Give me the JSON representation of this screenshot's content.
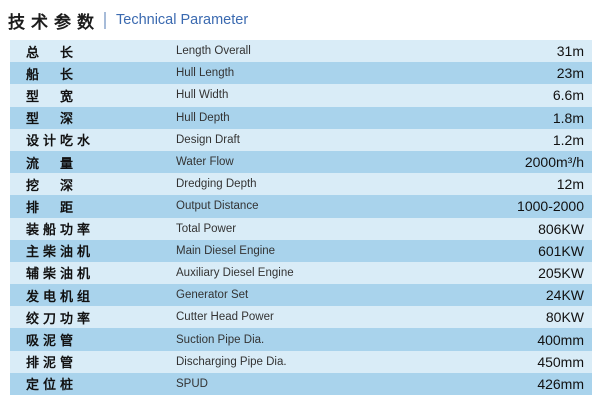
{
  "header": {
    "title_cn": "技术参数",
    "title_en": "Technical Parameter"
  },
  "colors": {
    "accent": "#3b6ab0",
    "separator": "#a7bcd9",
    "row_light": "#d9ecf7",
    "row_dark": "#a9d3ec"
  },
  "table": {
    "rows": [
      {
        "label_cn": "总　长",
        "label_en": "Length Overall",
        "value": "31m"
      },
      {
        "label_cn": "船　长",
        "label_en": "Hull Length",
        "value": "23m"
      },
      {
        "label_cn": "型　宽",
        "label_en": "Hull Width",
        "value": "6.6m"
      },
      {
        "label_cn": "型　深",
        "label_en": "Hull Depth",
        "value": "1.8m"
      },
      {
        "label_cn": "设计吃水",
        "label_en": "Design Draft",
        "value": "1.2m"
      },
      {
        "label_cn": "流　量",
        "label_en": "Water Flow",
        "value": "2000m³/h"
      },
      {
        "label_cn": "挖　深",
        "label_en": "Dredging Depth",
        "value": "12m"
      },
      {
        "label_cn": "排　距",
        "label_en": "Output Distance",
        "value": "1000-2000"
      },
      {
        "label_cn": "装船功率",
        "label_en": "Total Power",
        "value": "806KW"
      },
      {
        "label_cn": "主柴油机",
        "label_en": "Main Diesel Engine",
        "value": "601KW"
      },
      {
        "label_cn": "辅柴油机",
        "label_en": "Auxiliary Diesel Engine",
        "value": "205KW"
      },
      {
        "label_cn": "发电机组",
        "label_en": "Generator Set",
        "value": "24KW"
      },
      {
        "label_cn": "绞刀功率",
        "label_en": "Cutter Head Power",
        "value": "80KW"
      },
      {
        "label_cn": "吸泥管",
        "label_en": "Suction Pipe Dia.",
        "value": "400mm"
      },
      {
        "label_cn": "排泥管",
        "label_en": "Discharging Pipe Dia.",
        "value": "450mm"
      },
      {
        "label_cn": "定位桩",
        "label_en": "SPUD",
        "value": "426mm"
      }
    ]
  }
}
